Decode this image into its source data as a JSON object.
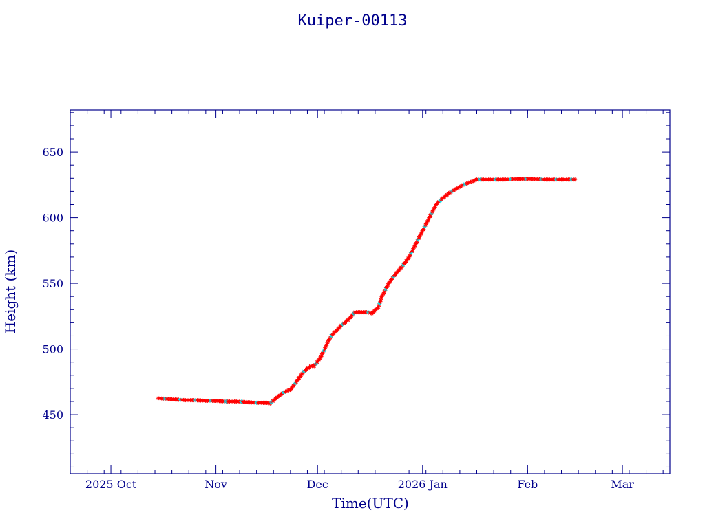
{
  "chart_data": {
    "type": "scatter",
    "title": "Kuiper-00113",
    "xlabel": "Time(UTC)",
    "ylabel": "Height (km)",
    "x_axis_type": "date",
    "xlim": [
      "2025-09-19",
      "2026-03-15"
    ],
    "ylim": [
      405,
      682
    ],
    "x_ticks": [
      {
        "date": "2025-10-01",
        "label": "2025 Oct"
      },
      {
        "date": "2025-11-01",
        "label": "Nov"
      },
      {
        "date": "2025-12-01",
        "label": "Dec"
      },
      {
        "date": "2026-01-01",
        "label": "2026 Jan"
      },
      {
        "date": "2026-02-01",
        "label": "Feb"
      },
      {
        "date": "2026-03-01",
        "label": "Mar"
      }
    ],
    "y_ticks": [
      450,
      500,
      550,
      600,
      650
    ],
    "y_minor_step": 10,
    "grid": false,
    "marker": "asterisk",
    "colors": {
      "axes": "#00008b",
      "primary_marker": "#ff0000",
      "secondary_marker": "#00e5ee",
      "connector": "#000000"
    },
    "series": [
      {
        "marker_color": "#ff0000",
        "x": [
          "2025-10-15",
          "2025-10-17",
          "2025-10-20",
          "2025-10-23",
          "2025-10-26",
          "2025-10-29",
          "2025-11-01",
          "2025-11-04",
          "2025-11-07",
          "2025-11-10",
          "2025-11-13",
          "2025-11-16",
          "2025-11-17",
          "2025-11-19",
          "2025-11-21",
          "2025-11-23",
          "2025-11-25",
          "2025-11-27",
          "2025-11-29",
          "2025-11-30",
          "2025-12-02",
          "2025-12-04",
          "2025-12-05",
          "2025-12-07",
          "2025-12-08",
          "2025-12-10",
          "2025-12-12",
          "2025-12-14",
          "2025-12-16",
          "2025-12-17",
          "2025-12-19",
          "2025-12-20",
          "2025-12-22",
          "2025-12-24",
          "2025-12-26",
          "2025-12-28",
          "2025-12-30",
          "2026-01-01",
          "2026-01-03",
          "2026-01-05",
          "2026-01-07",
          "2026-01-09",
          "2026-01-11",
          "2026-01-13",
          "2026-01-17",
          "2026-01-21",
          "2026-01-25",
          "2026-01-29",
          "2026-02-02",
          "2026-02-06",
          "2026-02-10",
          "2026-02-15"
        ],
        "y": [
          462.5,
          462,
          461.5,
          461,
          461,
          460.5,
          460.5,
          460,
          460,
          459.5,
          459,
          459,
          458.5,
          463,
          467,
          469,
          476,
          483,
          487,
          487,
          494,
          505,
          510,
          515,
          518,
          522,
          528,
          528,
          528,
          527,
          532,
          540,
          550,
          557,
          563,
          570,
          580,
          590,
          600,
          610,
          615,
          619,
          622,
          625,
          629,
          629,
          629,
          629.5,
          629.5,
          629,
          629,
          629
        ]
      }
    ]
  }
}
